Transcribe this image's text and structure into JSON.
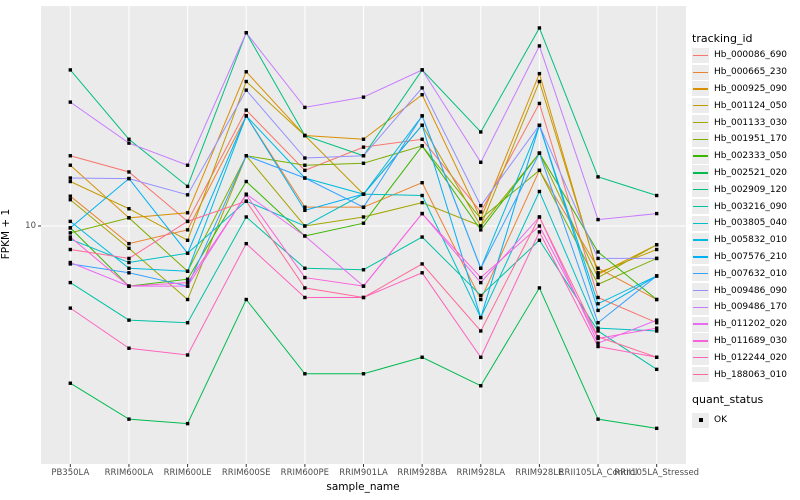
{
  "chart_data": {
    "type": "line",
    "title": "",
    "xlabel": "sample_name",
    "ylabel": "FPKM + 1",
    "y_scale": "log10",
    "y_ticks": [
      {
        "label": "10",
        "value": 10
      }
    ],
    "grid": "major-on-gray-panel",
    "panel_color": "#ebebeb",
    "gridline_color": "#ffffff",
    "point_shape": "black-square",
    "legend_position": "right",
    "categories": [
      "PB350LA",
      "RRIM600LA",
      "RRIM600LE",
      "RRIM600SE",
      "RRIM600PE",
      "RRIM901LA",
      "RRIM928BA",
      "RRIM928LA",
      "RRIM928LE",
      "RRII105LA_Control",
      "RRII105LA_Stressed"
    ],
    "legend": {
      "tracking_title": "tracking_id",
      "quant_title": "quant_status",
      "quant_items": [
        {
          "label": "OK"
        }
      ]
    },
    "series": [
      {
        "name": "Hb_000086_690",
        "color": "#F8766D",
        "values": [
          21,
          17.7,
          10.5,
          34,
          18,
          23,
          25,
          11.6,
          36.5,
          4.7,
          3.6
        ]
      },
      {
        "name": "Hb_000665_230",
        "color": "#EA8331",
        "values": [
          13.7,
          8.3,
          9.6,
          32,
          12.2,
          12.2,
          15.8,
          4.6,
          18,
          6.4,
          4.6
        ]
      },
      {
        "name": "Hb_000925_090",
        "color": "#D89000",
        "values": [
          19,
          10.9,
          11.5,
          51,
          26,
          25,
          40,
          10.8,
          50,
          6.0,
          8.2
        ]
      },
      {
        "name": "Hb_001124_050",
        "color": "#C09B00",
        "values": [
          16,
          12,
          8.6,
          46,
          26,
          14,
          29,
          10,
          46,
          6.1,
          7.8
        ]
      },
      {
        "name": "Hb_001133_030",
        "color": "#A3A500",
        "values": [
          13.2,
          7.9,
          4.6,
          21,
          10,
          11,
          12.8,
          10,
          21.6,
          5.8,
          8.2
        ]
      },
      {
        "name": "Hb_001951_170",
        "color": "#7CAE00",
        "values": [
          9.3,
          10.9,
          6.2,
          21,
          19,
          19.4,
          23.3,
          10.8,
          18,
          5.4,
          7.1
        ]
      },
      {
        "name": "Hb_002333_050",
        "color": "#39B600",
        "values": [
          9.8,
          5.3,
          5.7,
          16,
          9,
          10.3,
          23.3,
          9.6,
          21.6,
          7.6,
          4.6
        ]
      },
      {
        "name": "Hb_002521_020",
        "color": "#00BB4E",
        "values": [
          1.9,
          1.3,
          1.24,
          4.6,
          2.1,
          2.1,
          2.5,
          1.85,
          5.2,
          1.3,
          1.18
        ]
      },
      {
        "name": "Hb_002909_120",
        "color": "#00BF7D",
        "values": [
          52,
          25,
          15.2,
          77,
          26,
          21,
          52,
          27,
          81,
          16.8,
          13.8
        ]
      },
      {
        "name": "Hb_003216_090",
        "color": "#00C1A3",
        "values": [
          5.5,
          3.7,
          3.6,
          11,
          6.4,
          6.3,
          8.9,
          4.8,
          8.6,
          3.3,
          2.2
        ]
      },
      {
        "name": "Hb_003805_040",
        "color": "#00BFC4",
        "values": [
          8.7,
          6.8,
          7.5,
          13,
          10,
          14,
          13.8,
          3.8,
          14.4,
          3.4,
          3.3
        ]
      },
      {
        "name": "Hb_005832_010",
        "color": "#00BAE0",
        "values": [
          10.5,
          6.4,
          6.2,
          32,
          16.6,
          14,
          32,
          6.4,
          29,
          4.4,
          5.9
        ]
      },
      {
        "name": "Hb_007576_210",
        "color": "#00B0F6",
        "values": [
          9.8,
          16.5,
          7.5,
          32,
          11.8,
          14,
          29,
          3.8,
          29,
          4.1,
          5.9
        ]
      },
      {
        "name": "Hb_007632_010",
        "color": "#35A2FF",
        "values": [
          6.7,
          6.1,
          5.3,
          21,
          16.6,
          12.2,
          32,
          6.4,
          21.6,
          3.6,
          5.9
        ]
      },
      {
        "name": "Hb_009486_090",
        "color": "#9590FF",
        "values": [
          16.6,
          16.5,
          13.9,
          42,
          20.5,
          21,
          43,
          12.4,
          29,
          7.1,
          7.1
        ]
      },
      {
        "name": "Hb_009486_170",
        "color": "#C77CFF",
        "values": [
          37,
          24,
          19,
          77,
          35,
          39,
          52,
          19.6,
          67,
          10.7,
          11.4
        ]
      },
      {
        "name": "Hb_011202_020",
        "color": "#E76BF3",
        "values": [
          6.8,
          5.3,
          5.3,
          14,
          9,
          5.3,
          11.4,
          5.5,
          11,
          2.9,
          3.7
        ]
      },
      {
        "name": "Hb_011689_030",
        "color": "#FA62DB",
        "values": [
          8.9,
          5.3,
          5.5,
          13.9,
          5.8,
          5.3,
          11.4,
          5.8,
          10,
          3.05,
          3.4
        ]
      },
      {
        "name": "Hb_012244_020",
        "color": "#FF62BC",
        "values": [
          4.2,
          2.75,
          2.56,
          8.3,
          4.7,
          4.7,
          6.1,
          2.5,
          9.4,
          2.8,
          2.5
        ]
      },
      {
        "name": "Hb_188063_010",
        "color": "#FF6A98",
        "values": [
          7.8,
          7.1,
          10.5,
          13,
          5.2,
          4.7,
          6.7,
          3.3,
          11,
          3.1,
          2.5
        ]
      }
    ]
  }
}
